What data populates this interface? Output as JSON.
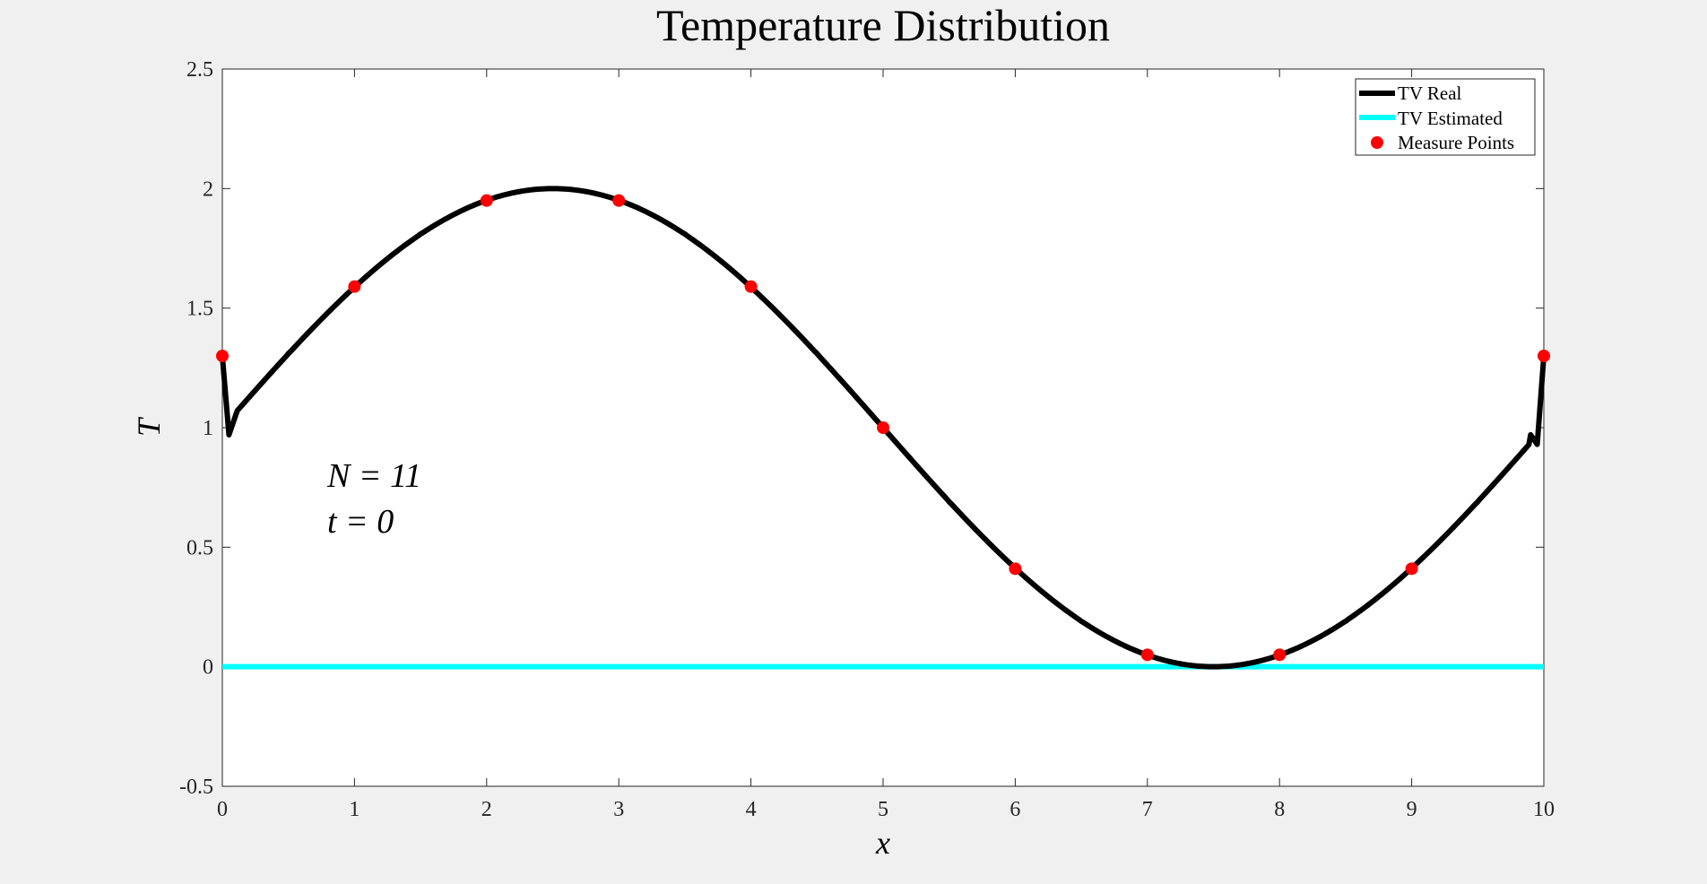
{
  "chart_data": {
    "type": "line",
    "title": "Temperature Distribution",
    "xlabel": "x",
    "ylabel": "T",
    "xlim": [
      0,
      10
    ],
    "ylim": [
      -0.5,
      2.5
    ],
    "x_ticks": [
      0,
      1,
      2,
      3,
      4,
      5,
      6,
      7,
      8,
      9,
      10
    ],
    "y_ticks": [
      -0.5,
      0,
      0.5,
      1,
      1.5,
      2,
      2.5
    ],
    "x_tick_labels": [
      "0",
      "1",
      "2",
      "3",
      "4",
      "5",
      "6",
      "7",
      "8",
      "9",
      "10"
    ],
    "y_tick_labels": [
      "-0.5",
      "0",
      "0.5",
      "1",
      "1.5",
      "2",
      "2.5"
    ],
    "grid": false,
    "legend_position": "top-right",
    "legend": [
      "TV Real",
      "TV Estimated",
      "Measure Points"
    ],
    "annotation": [
      "N = 11",
      "t = 0"
    ],
    "series": [
      {
        "name": "TV Real",
        "color": "#000000",
        "style": "line",
        "function": "1 + sin(2*pi*x/10)",
        "x": [
          0,
          0.05,
          0.1,
          0.5,
          1,
          1.5,
          2,
          2.5,
          3,
          3.5,
          4,
          4.5,
          5,
          5.5,
          6,
          6.5,
          7,
          7.5,
          8,
          8.5,
          9,
          9.5,
          9.9,
          9.95,
          10
        ],
        "y": [
          1.3,
          0.97,
          1.05,
          1.31,
          1.59,
          1.81,
          1.95,
          2.0,
          1.95,
          1.81,
          1.59,
          1.31,
          1.0,
          0.69,
          0.41,
          0.19,
          0.05,
          0.0,
          0.05,
          0.19,
          0.41,
          0.69,
          0.97,
          0.93,
          1.3
        ]
      },
      {
        "name": "TV Estimated",
        "color": "#00ffff",
        "style": "line",
        "x": [
          0,
          10
        ],
        "y": [
          0,
          0
        ]
      },
      {
        "name": "Measure Points",
        "color": "#ff0000",
        "style": "markers",
        "x": [
          0,
          1,
          2,
          3,
          4,
          5,
          6,
          7,
          8,
          9,
          10
        ],
        "y": [
          1.3,
          1.59,
          1.95,
          1.95,
          1.59,
          1.0,
          0.41,
          0.05,
          0.05,
          0.41,
          1.3
        ]
      }
    ]
  }
}
